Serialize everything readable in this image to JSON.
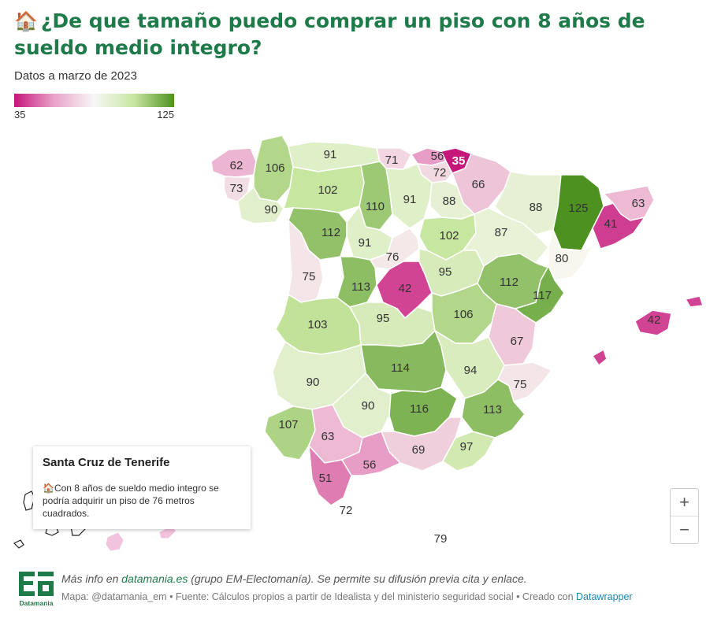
{
  "header": {
    "icon": "house-emoji",
    "icon_glyph": "🏠",
    "title": "¿De que tamaño puedo comprar un piso con 8 años de sueldo medio integro?",
    "subtitle": "Datos a marzo de 2023"
  },
  "legend": {
    "min_label": "35",
    "max_label": "125",
    "colors": [
      "#c5177a",
      "#e9a3c9",
      "#f7f7f7",
      "#c7e6a0",
      "#4d9221"
    ]
  },
  "map": {
    "provinces": [
      {
        "name": "A Coruña",
        "value": 62
      },
      {
        "name": "Lugo",
        "value": 106
      },
      {
        "name": "Pontevedra",
        "value": 73
      },
      {
        "name": "Ourense",
        "value": 90
      },
      {
        "name": "Asturias",
        "value": 91
      },
      {
        "name": "Cantabria",
        "value": 71
      },
      {
        "name": "Bizkaia",
        "value": 56
      },
      {
        "name": "Gipuzkoa",
        "value": 35
      },
      {
        "name": "Álava",
        "value": 72
      },
      {
        "name": "Navarra",
        "value": 66
      },
      {
        "name": "León",
        "value": 102
      },
      {
        "name": "Palencia",
        "value": 110
      },
      {
        "name": "Burgos",
        "value": 91
      },
      {
        "name": "La Rioja",
        "value": 88
      },
      {
        "name": "Huesca",
        "value": 88
      },
      {
        "name": "Lleida",
        "value": 125
      },
      {
        "name": "Girona",
        "value": 63
      },
      {
        "name": "Barcelona",
        "value": 41
      },
      {
        "name": "Zamora",
        "value": 112
      },
      {
        "name": "Valladolid",
        "value": 91
      },
      {
        "name": "Soria",
        "value": 102
      },
      {
        "name": "Zaragoza",
        "value": 87
      },
      {
        "name": "Tarragona",
        "value": 80
      },
      {
        "name": "Salamanca",
        "value": 75
      },
      {
        "name": "Segovia",
        "value": 76
      },
      {
        "name": "Ávila",
        "value": 113
      },
      {
        "name": "Madrid",
        "value": 42
      },
      {
        "name": "Guadalajara",
        "value": 95
      },
      {
        "name": "Teruel",
        "value": 112
      },
      {
        "name": "Castellón",
        "value": 117
      },
      {
        "name": "Baleares",
        "value": 42
      },
      {
        "name": "Cáceres",
        "value": 103
      },
      {
        "name": "Toledo",
        "value": 95
      },
      {
        "name": "Cuenca",
        "value": 106
      },
      {
        "name": "Valencia",
        "value": 67
      },
      {
        "name": "Ciudad Real",
        "value": 114
      },
      {
        "name": "Albacete",
        "value": 94
      },
      {
        "name": "Alicante",
        "value": 75
      },
      {
        "name": "Badajoz",
        "value": 90
      },
      {
        "name": "Córdoba",
        "value": 90
      },
      {
        "name": "Jaén",
        "value": 116
      },
      {
        "name": "Murcia",
        "value": 113
      },
      {
        "name": "Huelva",
        "value": 107
      },
      {
        "name": "Sevilla",
        "value": 63
      },
      {
        "name": "Granada",
        "value": 69
      },
      {
        "name": "Almería",
        "value": 97
      },
      {
        "name": "Cádiz",
        "value": 51
      },
      {
        "name": "Málaga",
        "value": 56
      },
      {
        "name": "Ceuta",
        "value": 72
      },
      {
        "name": "Melilla",
        "value": 79
      }
    ]
  },
  "tooltip": {
    "title": "Santa Cruz de Tenerife",
    "icon_glyph": "🏠",
    "body": "Con 8 años de sueldo medio integro se podría adquirir un piso de 76 metros cuadrados."
  },
  "zoom": {
    "plus": "+",
    "minus": "−"
  },
  "footer": {
    "logo_text": "Datamania",
    "line1_prefix": "Más info en ",
    "line1_link": "datamania.es",
    "line1_suffix": " (grupo EM-Electomanía). Se permite su difusión previa cita y enlace.",
    "line2_prefix": "Mapa: @datamania_em • Fuente: Cálculos propios a partir de Idealista y del ministerio seguridad social • Creado con ",
    "line2_link": "Datawrapper"
  }
}
